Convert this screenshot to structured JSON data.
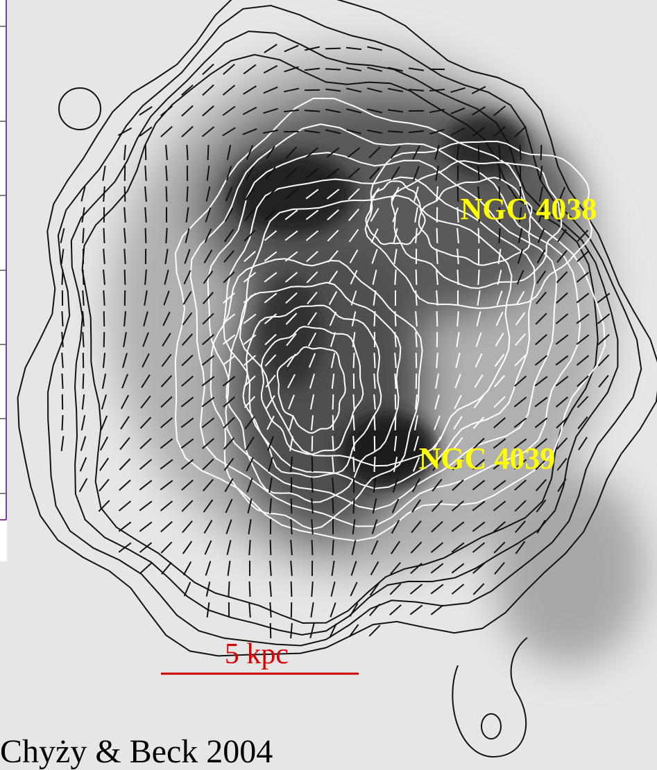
{
  "labels": {
    "galaxy_north": "NGC 4038",
    "galaxy_south": "NGC 4039",
    "scale_bar": "5 kpc",
    "credit": "Chyży & Beck 2004"
  }
}
